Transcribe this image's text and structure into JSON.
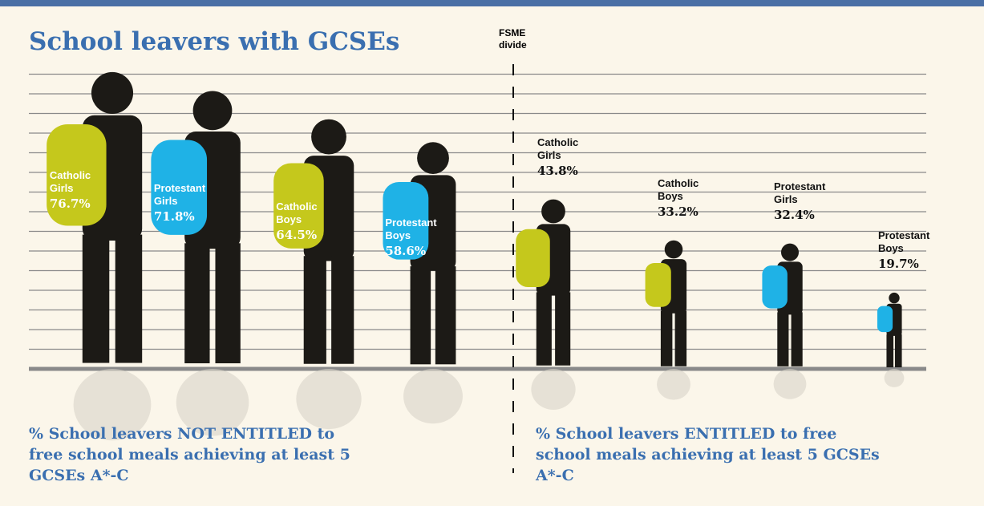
{
  "chart_data": {
    "type": "pictograph",
    "title": "School leavers with GCSEs",
    "divider_label": "FSME divide",
    "groups": [
      {
        "caption": "% School leavers NOT ENTITLED to free school meals achieving at least 5 GCSEs A*-C",
        "categories": [
          "Catholic Girls",
          "Protestant Girls",
          "Catholic Boys",
          "Protestant Boys"
        ],
        "values": [
          76.7,
          71.8,
          64.5,
          58.6
        ],
        "value_labels": [
          "76.7%",
          "71.8%",
          "64.5%",
          "58.6%"
        ],
        "colors": [
          "#c5c81c",
          "#1fb2e6",
          "#c5c81c",
          "#1fb2e6"
        ]
      },
      {
        "caption": "% School leavers ENTITLED to free school meals achieving at least 5 GCSEs A*-C",
        "categories": [
          "Catholic Girls",
          "Catholic Boys",
          "Protestant Girls",
          "Protestant Boys"
        ],
        "values": [
          43.8,
          33.2,
          32.4,
          19.7
        ],
        "value_labels": [
          "43.8%",
          "33.2%",
          "32.4%",
          "19.7%"
        ],
        "colors": [
          "#c5c81c",
          "#c5c81c",
          "#1fb2e6",
          "#1fb2e6"
        ]
      }
    ]
  }
}
